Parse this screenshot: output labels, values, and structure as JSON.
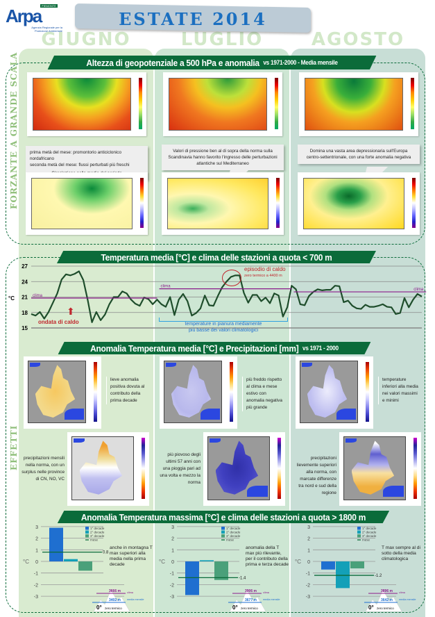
{
  "header": {
    "logo_text": "Arpa",
    "logo_region": "PIEMONTE",
    "logo_subtitle": "Agenzia Regionale per la Protezione Ambientale",
    "title": "ESTATE 2014"
  },
  "months": [
    "GIUGNO",
    "LUGLIO",
    "AGOSTO"
  ],
  "side_labels": {
    "top": "FORZANTE A GRANDE SCALA",
    "bottom": "EFFETTI"
  },
  "section1": {
    "title": "Altezza di geopotenziale a 500 hPa e anomalia",
    "suffix": "vs 1971-2000 - Media mensile",
    "callouts": [
      {
        "line1": "prima metà del mese:  promontorio anticiclonico nordafricano",
        "line2": "seconda metà del mese: flussi perturbati più freschi",
        "line3": "Circolazione nella media del periodo"
      },
      {
        "line1": "Valori di pressione ben al di sopra della norma sulla",
        "line2": "Scandinavia hanno favorito l'ingresso delle perturbazioni",
        "line3": "atlantiche sul Mediterraneo"
      },
      {
        "line1": "Domina una vasta area depressionaria sull'Europa",
        "line2": "centro-settentrionale, con una forte anomalia negativa",
        "line3": ""
      }
    ]
  },
  "section2": {
    "title": "Temperatura media [°C]  e clima delle stazioni a quota < 700 m",
    "annotations": {
      "heatwave": "ondata di caldo",
      "episode": "episodio di caldo",
      "freezing": "zero termico a 4400 m",
      "cool1": "temperature in pianura mediamente",
      "cool2": "più basse dei valori climatologici",
      "clima": "clima"
    }
  },
  "section3": {
    "title": "Anomalia Temperatura media [°C]  e Precipitazioni [mm]",
    "suffix": "vs 1971 - 2000",
    "temp_notes": [
      "lieve anomalia positiva dovuta al contributo della prima decade",
      "più freddo rispetto al clima e mese estivo con anomalia negativa più grande",
      "temperature inferiori alla media nei valori massimi e minimi"
    ],
    "precip_notes": [
      "precipitazioni mensili nella norma, con un surplus nelle province di CN, NO, VC",
      "più piovoso degli ultimi 57 anni con una pioggia pari ad una volta e mezzo la norma",
      "precipitazioni lievemente superiori alla norma, con marcate differenze tra nord e sud della regione"
    ]
  },
  "section4": {
    "title": "Anomalia Temperatura massima [°C] e clima delle stazioni a quota > 1800 m"
  },
  "colors": {
    "banner": "#0b6b3a",
    "june_bg": "#d9ebd0",
    "july_bg": "#cde6d3",
    "aug_bg": "#c8ded6",
    "temp_line": "#1e4d2b",
    "clima": "#8b1a8b",
    "dec1": "#1f6fd0",
    "dec2": "#14a0b8",
    "dec3": "#4aa07a",
    "mese": "#0b6b3a"
  },
  "chart_data": [
    {
      "type": "line",
      "ylabel": "°C",
      "ylim": [
        15,
        27
      ],
      "yticks": [
        15,
        18,
        21,
        24,
        27
      ],
      "grid": true,
      "series": [
        {
          "name": "",
          "values": [
            17.7,
            17.4,
            18.1,
            16.8,
            18.1,
            19.9,
            21.7,
            24.4,
            25.4,
            25.2,
            25.5,
            26.0,
            24.3,
            20.5,
            16.1,
            18.1,
            16.5,
            17.6,
            19.6,
            21.0,
            21.0,
            22.1,
            21.7,
            20.5,
            19.7,
            19.3,
            20.9,
            20.6,
            19.6,
            20.5,
            19.6,
            19.1,
            21.0,
            17.5,
            20.5,
            21.6,
            20.2,
            17.4,
            17.9,
            18.8,
            21.3,
            19.4,
            19.3,
            21.2,
            22.9,
            24.0,
            24.9,
            25.2,
            25.2,
            21.8,
            19.9,
            21.4,
            21.4,
            20.2,
            20.9,
            19.8,
            21.7,
            21.3,
            17.2,
            19.0,
            23.2,
            22.5,
            19.6,
            19.4,
            21.2,
            22.0,
            22.5,
            22.3,
            22.4,
            22.4,
            23.2,
            23.1,
            20.0,
            20.3,
            19.3,
            18.8,
            18.7,
            19.5,
            19.1,
            19.1,
            19.3,
            19.6,
            19.1,
            19.0,
            17.7,
            17.9,
            20.8,
            19.0,
            20.5,
            21.6,
            21.1
          ]
        }
      ],
      "clima": [
        {
          "month": "GIUGNO",
          "value": 20.8
        },
        {
          "month": "LUGLIO",
          "value": 22.6
        },
        {
          "month": "AGOSTO",
          "value": 22.0
        }
      ]
    },
    {
      "type": "bar",
      "ylabel": "°C",
      "ylim": [
        -3,
        3
      ],
      "yticks": [
        3,
        2,
        1,
        0,
        -1,
        -2,
        -3
      ],
      "legend": [
        "1° decade",
        "2° decade",
        "3° decade",
        "mese"
      ],
      "months": [
        {
          "values": [
            2.9,
            0.2,
            -0.8
          ],
          "mese": 0.8,
          "mese_label": "0.8",
          "note": "anche in montagna T max superiori alla media nella prima decade",
          "clima_z": "3666 m",
          "media_z": "3402 m"
        },
        {
          "values": [
            -2.9,
            0.1,
            -1.6
          ],
          "mese": -1.4,
          "mese_label": "-1.4",
          "note": "anomalia della T max più rilevante, per il contributo della prima e terza decade",
          "clima_z": "3906 m",
          "media_z": "3677 m"
        },
        {
          "values": [
            -0.7,
            -2.3,
            -0.6
          ],
          "mese": -1.2,
          "mese_label": "-1.2",
          "note": "T max sempre al di sotto della media climatologica",
          "clima_z": "3896 m",
          "media_z": "3642 m"
        }
      ],
      "labels": {
        "clima": "clima",
        "media": "media mensile",
        "zero": "0°",
        "zero_text": "zero termico"
      }
    }
  ]
}
